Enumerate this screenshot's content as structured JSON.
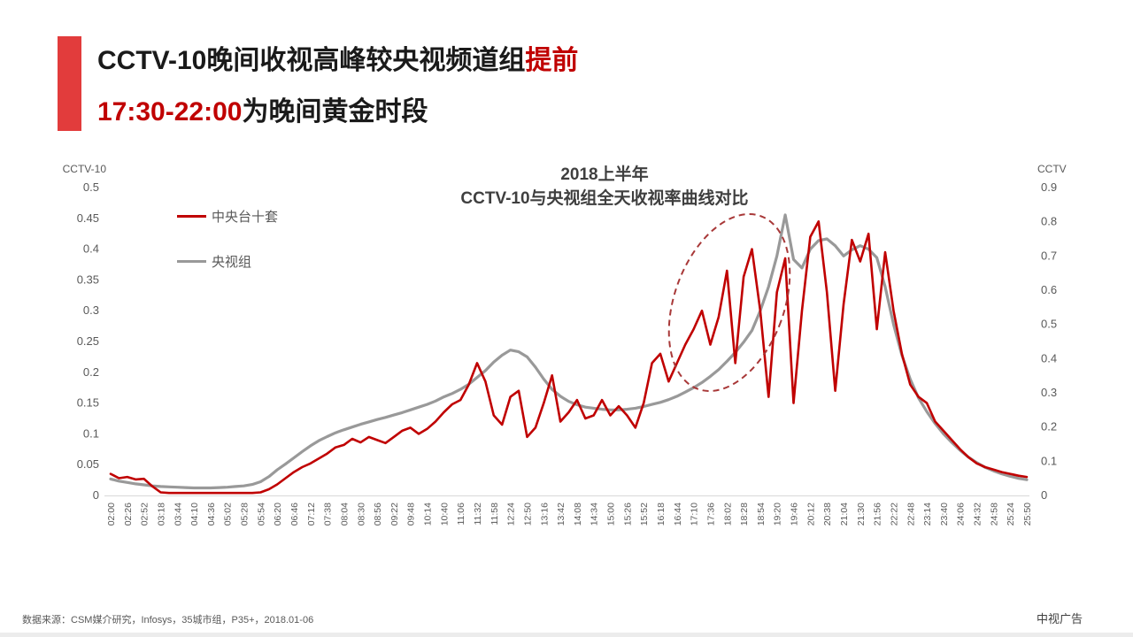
{
  "slide": {
    "title": {
      "line1_black": "CCTV-10晚间收视高峰较央视频道组",
      "line1_red": "提前",
      "line2_red": "17:30-22:00",
      "line2_black": "为晚间黄金时段"
    },
    "footer": {
      "source": "数据来源：CSM媒介研究，Infosys，35城市组，P35+，2018.01-06",
      "brand": "中视广告"
    },
    "accent_color": "#E23C3C",
    "red_text_color": "#C00000"
  },
  "chart_data": {
    "type": "line",
    "title_line1": "2018上半年",
    "title_line2": "CCTV-10与央视组全天收视率曲线对比",
    "grid": false,
    "legend_position": "upper-left",
    "x_labels": [
      "02:00",
      "02:26",
      "02:52",
      "03:18",
      "03:44",
      "04:10",
      "04:36",
      "05:02",
      "05:28",
      "05:54",
      "06:20",
      "06:46",
      "07:12",
      "07:38",
      "08:04",
      "08:30",
      "08:56",
      "09:22",
      "09:48",
      "10:14",
      "10:40",
      "11:06",
      "11:32",
      "11:58",
      "12:24",
      "12:50",
      "13:16",
      "13:42",
      "14:08",
      "14:34",
      "15:00",
      "15:26",
      "15:52",
      "16:18",
      "16:44",
      "17:10",
      "17:36",
      "18:02",
      "18:28",
      "18:54",
      "19:20",
      "19:46",
      "20:12",
      "20:38",
      "21:04",
      "21:30",
      "21:56",
      "22:22",
      "22:48",
      "23:14",
      "23:40",
      "24:06",
      "24:32",
      "24:58",
      "25:24",
      "25:50"
    ],
    "sample_interval_minutes": 13,
    "left_axis": {
      "title": "CCTV-10",
      "min": 0,
      "max": 0.5,
      "tick_labels": [
        "0",
        "0.05",
        "0.1",
        "0.15",
        "0.2",
        "0.25",
        "0.3",
        "0.35",
        "0.4",
        "0.45",
        "0.5"
      ]
    },
    "right_axis": {
      "title": "CCTV",
      "min": 0,
      "max": 0.9,
      "tick_labels": [
        "0",
        "0.1",
        "0.2",
        "0.3",
        "0.4",
        "0.5",
        "0.6",
        "0.7",
        "0.8",
        "0.9"
      ]
    },
    "series": [
      {
        "name": "中央台十套",
        "color": "#C00000",
        "axis": "left",
        "stroke_width": 2.6,
        "values": [
          0.035,
          0.028,
          0.03,
          0.026,
          0.027,
          0.015,
          0.005,
          0.004,
          0.004,
          0.004,
          0.004,
          0.004,
          0.004,
          0.004,
          0.004,
          0.004,
          0.004,
          0.004,
          0.005,
          0.01,
          0.018,
          0.028,
          0.038,
          0.046,
          0.052,
          0.06,
          0.068,
          0.078,
          0.082,
          0.092,
          0.086,
          0.095,
          0.09,
          0.085,
          0.095,
          0.105,
          0.11,
          0.1,
          0.108,
          0.12,
          0.135,
          0.148,
          0.155,
          0.18,
          0.215,
          0.185,
          0.13,
          0.115,
          0.16,
          0.17,
          0.095,
          0.11,
          0.15,
          0.195,
          0.12,
          0.135,
          0.155,
          0.125,
          0.13,
          0.155,
          0.13,
          0.145,
          0.13,
          0.11,
          0.15,
          0.215,
          0.23,
          0.185,
          0.215,
          0.245,
          0.27,
          0.3,
          0.245,
          0.29,
          0.365,
          0.215,
          0.355,
          0.4,
          0.3,
          0.16,
          0.33,
          0.385,
          0.15,
          0.3,
          0.42,
          0.445,
          0.33,
          0.17,
          0.31,
          0.415,
          0.38,
          0.425,
          0.27,
          0.395,
          0.3,
          0.23,
          0.18,
          0.16,
          0.15,
          0.12,
          0.105,
          0.09,
          0.075,
          0.062,
          0.052,
          0.046,
          0.042,
          0.038,
          0.035,
          0.032,
          0.03
        ]
      },
      {
        "name": "央视组",
        "color": "#999999",
        "axis": "right",
        "stroke_width": 3.2,
        "values": [
          0.048,
          0.042,
          0.038,
          0.034,
          0.031,
          0.028,
          0.026,
          0.025,
          0.024,
          0.023,
          0.022,
          0.022,
          0.022,
          0.023,
          0.024,
          0.026,
          0.028,
          0.032,
          0.04,
          0.055,
          0.075,
          0.092,
          0.11,
          0.128,
          0.145,
          0.16,
          0.172,
          0.183,
          0.192,
          0.2,
          0.208,
          0.215,
          0.222,
          0.228,
          0.235,
          0.242,
          0.25,
          0.258,
          0.266,
          0.276,
          0.288,
          0.298,
          0.31,
          0.325,
          0.345,
          0.365,
          0.39,
          0.41,
          0.425,
          0.42,
          0.405,
          0.375,
          0.34,
          0.31,
          0.29,
          0.275,
          0.265,
          0.258,
          0.255,
          0.252,
          0.25,
          0.25,
          0.252,
          0.255,
          0.26,
          0.266,
          0.272,
          0.28,
          0.29,
          0.302,
          0.315,
          0.33,
          0.348,
          0.368,
          0.392,
          0.418,
          0.448,
          0.482,
          0.54,
          0.61,
          0.7,
          0.82,
          0.69,
          0.665,
          0.72,
          0.745,
          0.75,
          0.73,
          0.7,
          0.718,
          0.73,
          0.72,
          0.695,
          0.61,
          0.5,
          0.41,
          0.34,
          0.285,
          0.245,
          0.21,
          0.18,
          0.155,
          0.132,
          0.112,
          0.096,
          0.082,
          0.072,
          0.063,
          0.056,
          0.05,
          0.046
        ]
      }
    ],
    "annotation": {
      "shape": "dashed-ellipse",
      "color": "#A83838",
      "highlight_range": "16:44-19:30",
      "note": "CCTV-10 evening peak arrives earlier than CCTV channel group"
    }
  }
}
